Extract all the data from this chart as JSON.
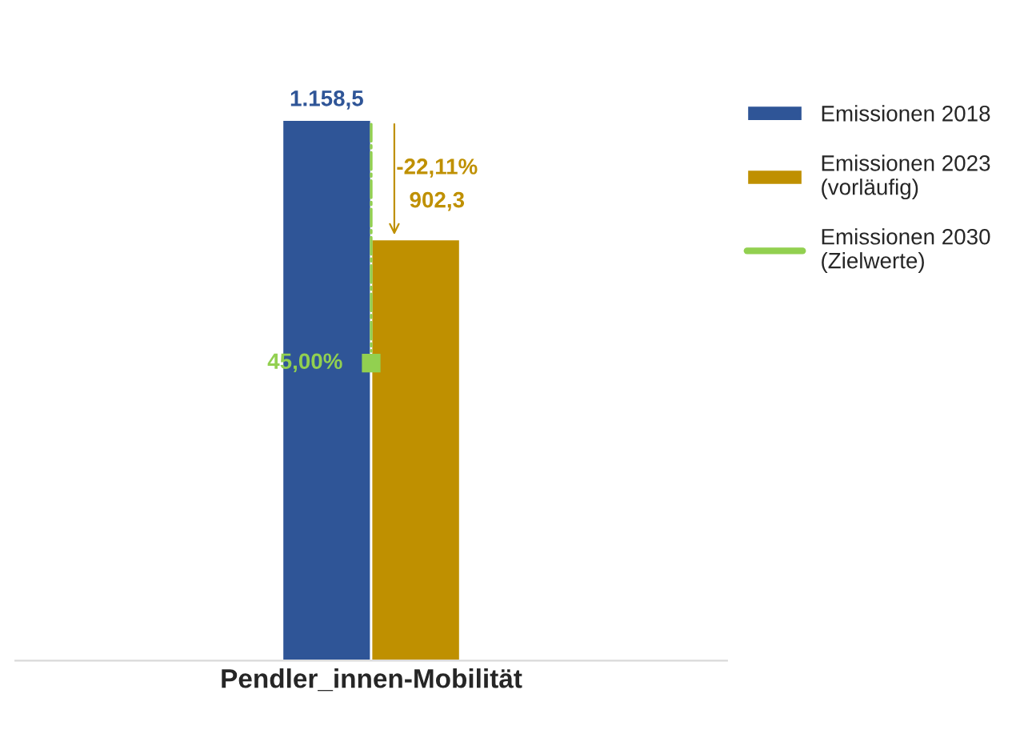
{
  "chart_data": {
    "type": "bar",
    "categories": [
      "Pendler_innen-Mobilität"
    ],
    "series": [
      {
        "name": "Emissionen 2018",
        "color": "#2f5597",
        "values": [
          1158.5
        ],
        "value_labels": [
          "1.158,5"
        ]
      },
      {
        "name": "Emissionen 2023\n(vorläufig)",
        "color": "#bf9000",
        "values": [
          902.3
        ],
        "value_labels": [
          "902,3"
        ]
      },
      {
        "name": "Emissionen 2030\n(Zielwerte)",
        "color": "#92d050",
        "type": "scatter",
        "values": [
          637.2
        ]
      }
    ],
    "annotations": [
      {
        "text": "-22,11%",
        "x": "Pendler_innen-Mobilität",
        "y": 902.3
      },
      {
        "text": "45,00%",
        "x": "Pendler_innen-Mobilität",
        "y": 637.2
      }
    ],
    "legend": "right",
    "tick_labels": "x",
    "grid": false
  }
}
